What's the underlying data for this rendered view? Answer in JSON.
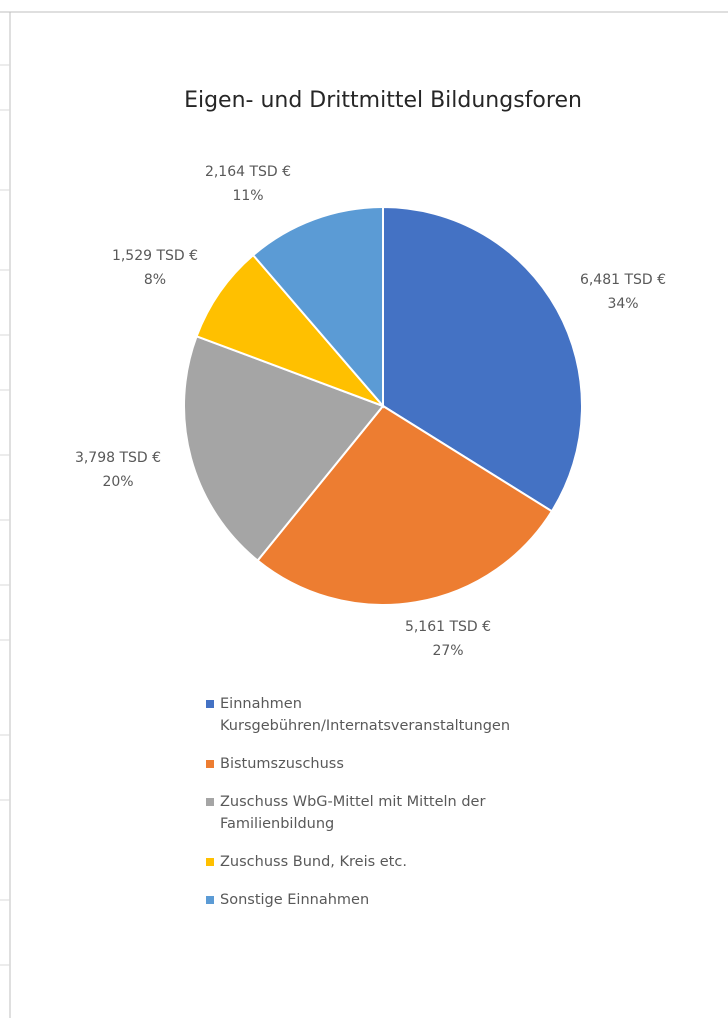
{
  "chart_data": {
    "type": "pie",
    "title": "Eigen- und Drittmittel Bildungsforen",
    "categories": [
      "Einnahmen Kursgebühren/Internatsveranstaltungen",
      "Bistumszuschuss",
      "Zuschuss WbG-Mittel mit Mitteln der Familienbildung",
      "Zuschuss Bund, Kreis etc.",
      "Sonstige Einnahmen"
    ],
    "values": [
      6481,
      5161,
      3798,
      1529,
      2164
    ],
    "value_labels": [
      "6,481 TSD €",
      "5,161 TSD €",
      "3,798 TSD €",
      "1,529 TSD €",
      "2,164 TSD €"
    ],
    "percent_labels": [
      "34%",
      "27%",
      "20%",
      "8%",
      "11%"
    ],
    "colors": [
      "#4472C4",
      "#ED7D31",
      "#A5A5A5",
      "#FFC000",
      "#5B9BD5"
    ],
    "legend": "bottom"
  }
}
